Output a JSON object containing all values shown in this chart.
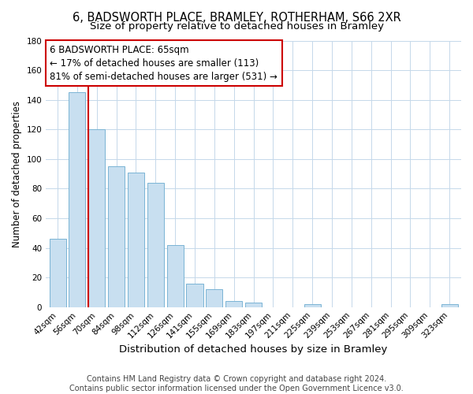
{
  "title": "6, BADSWORTH PLACE, BRAMLEY, ROTHERHAM, S66 2XR",
  "subtitle": "Size of property relative to detached houses in Bramley",
  "xlabel": "Distribution of detached houses by size in Bramley",
  "ylabel": "Number of detached properties",
  "bar_labels": [
    "42sqm",
    "56sqm",
    "70sqm",
    "84sqm",
    "98sqm",
    "112sqm",
    "126sqm",
    "141sqm",
    "155sqm",
    "169sqm",
    "183sqm",
    "197sqm",
    "211sqm",
    "225sqm",
    "239sqm",
    "253sqm",
    "267sqm",
    "281sqm",
    "295sqm",
    "309sqm",
    "323sqm"
  ],
  "bar_values": [
    46,
    145,
    120,
    95,
    91,
    84,
    42,
    16,
    12,
    4,
    3,
    0,
    0,
    2,
    0,
    0,
    0,
    0,
    0,
    0,
    2
  ],
  "bar_color": "#c8dff0",
  "bar_edge_color": "#7ab4d4",
  "marker_color": "#cc0000",
  "annotation_line1": "6 BADSWORTH PLACE: 65sqm",
  "annotation_line2": "← 17% of detached houses are smaller (113)",
  "annotation_line3": "81% of semi-detached houses are larger (531) →",
  "annotation_box_color": "#ffffff",
  "annotation_box_edge_color": "#cc0000",
  "ylim": [
    0,
    180
  ],
  "yticks": [
    0,
    20,
    40,
    60,
    80,
    100,
    120,
    140,
    160,
    180
  ],
  "footer_line1": "Contains HM Land Registry data © Crown copyright and database right 2024.",
  "footer_line2": "Contains public sector information licensed under the Open Government Licence v3.0.",
  "title_fontsize": 10.5,
  "subtitle_fontsize": 9.5,
  "xlabel_fontsize": 9.5,
  "ylabel_fontsize": 8.5,
  "tick_fontsize": 7.5,
  "footer_fontsize": 7,
  "annotation_fontsize": 8.5,
  "red_line_x": 1.575
}
